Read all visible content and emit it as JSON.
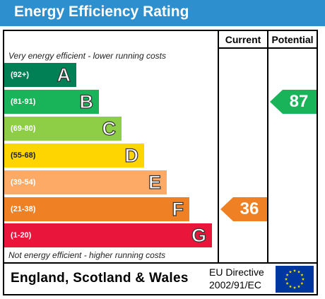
{
  "header": {
    "title": "Energy Efficiency Rating"
  },
  "columns": {
    "current": "Current",
    "potential": "Potential"
  },
  "notes": {
    "top": "Very energy efficient - lower running costs",
    "bottom": "Not energy efficient - higher running costs"
  },
  "bands": [
    {
      "range": "(92+)",
      "letter": "A",
      "color": "#008054"
    },
    {
      "range": "(81-91)",
      "letter": "B",
      "color": "#19b459"
    },
    {
      "range": "(69-80)",
      "letter": "C",
      "color": "#8dce46"
    },
    {
      "range": "(55-68)",
      "letter": "D",
      "color": "#ffd500"
    },
    {
      "range": "(39-54)",
      "letter": "E",
      "color": "#fcaa65"
    },
    {
      "range": "(21-38)",
      "letter": "F",
      "color": "#ef8023"
    },
    {
      "range": "(1-20)",
      "letter": "G",
      "color": "#e9153b"
    }
  ],
  "current": {
    "value": "36",
    "band": "F",
    "color": "#ef8023"
  },
  "potential": {
    "value": "87",
    "band": "B",
    "color": "#19b459"
  },
  "footer": {
    "country": "England, Scotland & Wales",
    "directive_line1": "EU Directive",
    "directive_line2": "2002/91/EC",
    "flag_color": "#0036a0",
    "star_color": "#ffe300"
  }
}
